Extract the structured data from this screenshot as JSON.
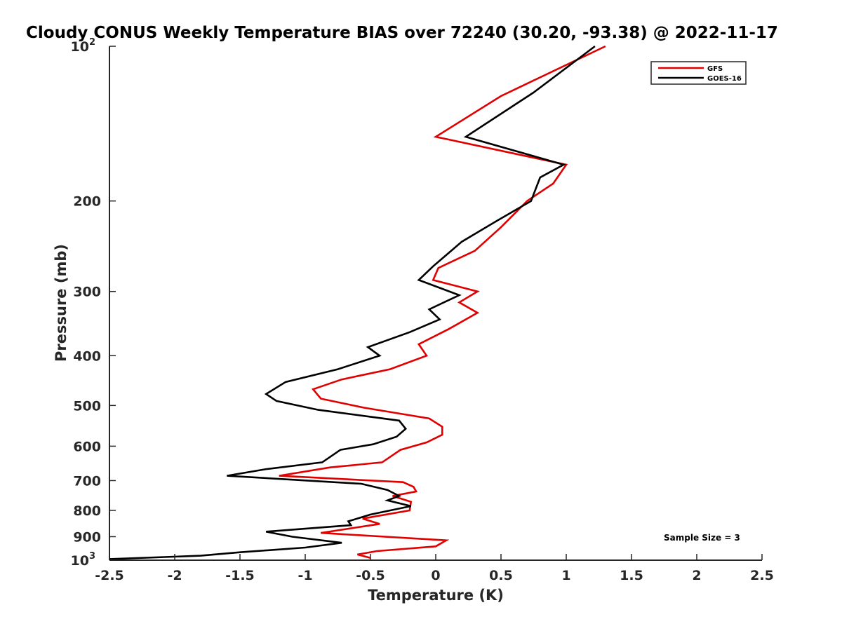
{
  "chart_data": {
    "type": "line",
    "title": "Cloudy CONUS Weekly Temperature BIAS over 72240 (30.20, -93.38) @ 2022-11-17",
    "xlabel": "Temperature (K)",
    "ylabel": "Pressure (mb)",
    "xlim": [
      -2.5,
      2.5
    ],
    "ylim": [
      100,
      1000
    ],
    "yscale": "log",
    "y_reversed": true,
    "xticks": [
      -2.5,
      -2,
      -1.5,
      -1,
      -0.5,
      0,
      0.5,
      1,
      1.5,
      2,
      2.5
    ],
    "xtick_labels": [
      "-2.5",
      "-2",
      "-1.5",
      "-1",
      "-0.5",
      "0",
      "0.5",
      "1",
      "1.5",
      "2",
      "2.5"
    ],
    "yticks": [
      {
        "value": 100,
        "base": "10",
        "exp": "2"
      },
      {
        "value": 200,
        "label": "200"
      },
      {
        "value": 300,
        "label": "300"
      },
      {
        "value": 400,
        "label": "400"
      },
      {
        "value": 500,
        "label": "500"
      },
      {
        "value": 600,
        "label": "600"
      },
      {
        "value": 700,
        "label": "700"
      },
      {
        "value": 800,
        "label": "800"
      },
      {
        "value": 900,
        "label": "900"
      },
      {
        "value": 1000,
        "base": "10",
        "exp": "3"
      }
    ],
    "legend_position": "top-right",
    "annotation": "Sample Size = 3",
    "series": [
      {
        "name": "GFS",
        "color": "#e00000",
        "points": [
          [
            1.3,
            100
          ],
          [
            0.5,
            125
          ],
          [
            0.0,
            150
          ],
          [
            1.0,
            170
          ],
          [
            0.9,
            185
          ],
          [
            0.7,
            200
          ],
          [
            0.5,
            225
          ],
          [
            0.3,
            250
          ],
          [
            0.02,
            270
          ],
          [
            -0.02,
            285
          ],
          [
            0.32,
            300
          ],
          [
            0.18,
            315
          ],
          [
            0.32,
            330
          ],
          [
            0.1,
            355
          ],
          [
            -0.13,
            380
          ],
          [
            -0.07,
            400
          ],
          [
            -0.35,
            425
          ],
          [
            -0.72,
            445
          ],
          [
            -0.94,
            465
          ],
          [
            -0.88,
            485
          ],
          [
            -0.55,
            505
          ],
          [
            -0.05,
            530
          ],
          [
            0.05,
            550
          ],
          [
            0.05,
            570
          ],
          [
            -0.07,
            590
          ],
          [
            -0.27,
            610
          ],
          [
            -0.41,
            645
          ],
          [
            -0.81,
            660
          ],
          [
            -1.2,
            685
          ],
          [
            -0.25,
            705
          ],
          [
            -0.17,
            720
          ],
          [
            -0.15,
            735
          ],
          [
            -0.33,
            750
          ],
          [
            -0.19,
            770
          ],
          [
            -0.2,
            800
          ],
          [
            -0.56,
            830
          ],
          [
            -0.43,
            850
          ],
          [
            -0.88,
            885
          ],
          [
            0.08,
            915
          ],
          [
            0.0,
            940
          ],
          [
            -0.45,
            960
          ],
          [
            -0.6,
            975
          ],
          [
            -0.5,
            990
          ]
        ]
      },
      {
        "name": "GOES-16",
        "color": "#000000",
        "points": [
          [
            1.22,
            100
          ],
          [
            0.75,
            123
          ],
          [
            0.23,
            150
          ],
          [
            0.98,
            170
          ],
          [
            0.8,
            180
          ],
          [
            0.73,
            200
          ],
          [
            0.45,
            220
          ],
          [
            0.2,
            240
          ],
          [
            -0.02,
            268
          ],
          [
            -0.13,
            285
          ],
          [
            0.18,
            305
          ],
          [
            -0.05,
            325
          ],
          [
            0.03,
            340
          ],
          [
            -0.2,
            360
          ],
          [
            -0.52,
            385
          ],
          [
            -0.43,
            400
          ],
          [
            -0.75,
            425
          ],
          [
            -1.15,
            450
          ],
          [
            -1.3,
            475
          ],
          [
            -1.22,
            490
          ],
          [
            -0.9,
            510
          ],
          [
            -0.28,
            535
          ],
          [
            -0.23,
            555
          ],
          [
            -0.3,
            575
          ],
          [
            -0.48,
            595
          ],
          [
            -0.73,
            610
          ],
          [
            -0.87,
            645
          ],
          [
            -1.3,
            665
          ],
          [
            -1.6,
            685
          ],
          [
            -0.57,
            710
          ],
          [
            -0.37,
            730
          ],
          [
            -0.28,
            750
          ],
          [
            -0.37,
            765
          ],
          [
            -0.19,
            785
          ],
          [
            -0.5,
            815
          ],
          [
            -0.67,
            840
          ],
          [
            -0.65,
            855
          ],
          [
            -1.3,
            880
          ],
          [
            -1.1,
            900
          ],
          [
            -0.72,
            925
          ],
          [
            -1.0,
            945
          ],
          [
            -1.5,
            965
          ],
          [
            -1.8,
            980
          ],
          [
            -2.5,
            995
          ]
        ]
      }
    ]
  }
}
